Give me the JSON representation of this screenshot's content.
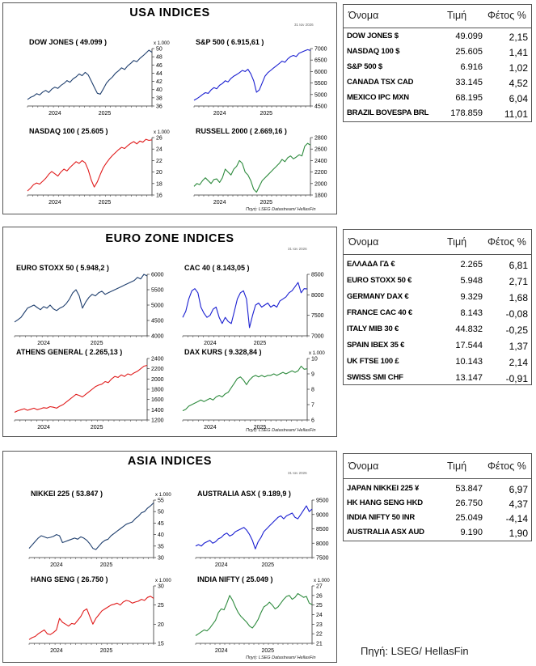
{
  "sections": [
    {
      "title": "USA INDICES",
      "date_stamp": "31 Ιαν 2026",
      "source": "Πηγή: LSEG Datastream/ HellasFin",
      "charts": [
        {
          "title": "DOW JONES ( 49.099 )",
          "unit": "x 1.000",
          "color": "#1f3f6e",
          "ylim": [
            36,
            50
          ],
          "yticks": [
            36,
            38,
            40,
            42,
            44,
            46,
            48,
            50
          ],
          "xlabels": [
            "2024",
            "2025"
          ],
          "values": [
            37.6,
            38.1,
            38.4,
            39.0,
            38.7,
            39.4,
            39.8,
            39.3,
            40.1,
            40.6,
            40.3,
            41.0,
            41.5,
            42.2,
            41.8,
            42.6,
            43.1,
            43.8,
            43.4,
            44.2,
            43.6,
            42.1,
            40.6,
            39.1,
            38.9,
            40.2,
            41.6,
            42.4,
            43.1,
            44.0,
            44.6,
            45.3,
            44.9,
            45.8,
            46.4,
            47.1,
            46.8,
            47.6,
            48.2,
            48.9,
            49.6,
            49.1
          ]
        },
        {
          "title": "S&P 500 ( 6.915,61 )",
          "unit": "",
          "color": "#1a1fd1",
          "ylim": [
            4500,
            7000
          ],
          "yticks": [
            4500,
            5000,
            5500,
            6000,
            6500,
            7000
          ],
          "xlabels": [
            "2024",
            "2025"
          ],
          "values": [
            4750,
            4820,
            4900,
            5000,
            5080,
            5050,
            5200,
            5300,
            5250,
            5400,
            5480,
            5600,
            5550,
            5700,
            5800,
            5870,
            5950,
            6050,
            6000,
            6100,
            5900,
            5600,
            5100,
            5200,
            5500,
            5800,
            5950,
            6050,
            6150,
            6250,
            6350,
            6450,
            6400,
            6550,
            6650,
            6700,
            6650,
            6800,
            6850,
            6900,
            6950,
            6915
          ]
        },
        {
          "title": "NASDAQ 100 ( 25.605 )",
          "unit": "x 1.000",
          "color": "#e01b1b",
          "ylim": [
            16,
            26
          ],
          "yticks": [
            16,
            18,
            20,
            22,
            24,
            26
          ],
          "xlabels": [
            "2024",
            "2025"
          ],
          "values": [
            16.7,
            17.2,
            17.8,
            18.1,
            17.9,
            18.4,
            18.9,
            19.6,
            20.1,
            19.7,
            19.3,
            20.0,
            20.5,
            20.2,
            20.8,
            21.3,
            21.8,
            21.5,
            22.0,
            21.6,
            20.4,
            18.6,
            17.4,
            18.3,
            19.6,
            20.8,
            21.6,
            22.3,
            22.9,
            23.4,
            23.9,
            24.3,
            24.1,
            24.6,
            25.0,
            25.3,
            24.9,
            25.4,
            25.2,
            25.7,
            25.5,
            25.6
          ]
        },
        {
          "title": "RUSSELL 2000 ( 2.669,16 )",
          "unit": "",
          "color": "#2e8b3e",
          "ylim": [
            1800,
            2800
          ],
          "yticks": [
            1800,
            2000,
            2200,
            2400,
            2600,
            2800
          ],
          "xlabels": [
            "2024",
            "2025"
          ],
          "values": [
            1950,
            2000,
            1980,
            2050,
            2100,
            2050,
            2000,
            2070,
            2080,
            2020,
            2100,
            2250,
            2200,
            2150,
            2250,
            2300,
            2400,
            2350,
            2200,
            2150,
            2050,
            1900,
            1850,
            1950,
            2050,
            2100,
            2150,
            2200,
            2250,
            2300,
            2350,
            2420,
            2380,
            2450,
            2480,
            2430,
            2460,
            2500,
            2480,
            2650,
            2700,
            2669
          ]
        }
      ],
      "table": {
        "headers": [
          "Όνομα",
          "Τιμή",
          "Φέτος %"
        ],
        "rows": [
          [
            "DOW JONES $",
            "49.099",
            "2,15"
          ],
          [
            "NASDAQ 100 $",
            "25.605",
            "1,41"
          ],
          [
            "S&P 500 $",
            "6.916",
            "1,02"
          ],
          [
            "CANADA TSX CAD",
            "33.145",
            "4,52"
          ],
          [
            "MEXICO IPC MXN",
            "68.195",
            "6,04"
          ],
          [
            "BRAZIL BOVESPA BRL",
            "178.859",
            "11,01"
          ]
        ]
      }
    },
    {
      "title": "EURO ZONE INDICES",
      "date_stamp": "31 Ιαν 2026",
      "source": "Πηγή: LSEG Datastream/ HellasFin",
      "charts": [
        {
          "title": "EURO STOXX 50 ( 5.948,2 )",
          "unit": "",
          "color": "#1f3f6e",
          "ylim": [
            4000,
            6000
          ],
          "yticks": [
            4000,
            4500,
            5000,
            5500,
            6000
          ],
          "xlabels": [
            "2024",
            "2025"
          ],
          "values": [
            4450,
            4520,
            4600,
            4750,
            4900,
            4950,
            5000,
            4920,
            4850,
            4950,
            4900,
            5000,
            4880,
            4820,
            4900,
            4950,
            5050,
            5200,
            5400,
            5500,
            5300,
            4900,
            5100,
            5250,
            5350,
            5300,
            5400,
            5450,
            5350,
            5400,
            5450,
            5500,
            5550,
            5600,
            5650,
            5700,
            5750,
            5800,
            5900,
            5850,
            6000,
            5948
          ]
        },
        {
          "title": "CAC 40 ( 8.143,05 )",
          "unit": "",
          "color": "#1a1fd1",
          "ylim": [
            7000,
            8500
          ],
          "yticks": [
            7000,
            7500,
            8000,
            8500
          ],
          "xlabels": [
            "2024",
            "2025"
          ],
          "values": [
            7450,
            7600,
            7900,
            8100,
            8150,
            8050,
            7700,
            7550,
            7450,
            7500,
            7650,
            7700,
            7450,
            7300,
            7450,
            7350,
            7300,
            7600,
            7900,
            8050,
            8100,
            7900,
            7200,
            7500,
            7750,
            7800,
            7700,
            7750,
            7800,
            7700,
            7750,
            7700,
            7850,
            7900,
            7950,
            8050,
            8100,
            8200,
            8300,
            8050,
            8150,
            8143
          ]
        },
        {
          "title": "ATHENS GENERAL ( 2.265,13 )",
          "unit": "",
          "color": "#e01b1b",
          "ylim": [
            1200,
            2400
          ],
          "yticks": [
            1200,
            1400,
            1600,
            1800,
            2000,
            2200,
            2400
          ],
          "xlabels": [
            "2024",
            "2025"
          ],
          "values": [
            1350,
            1380,
            1400,
            1420,
            1390,
            1410,
            1430,
            1400,
            1420,
            1440,
            1430,
            1460,
            1450,
            1430,
            1470,
            1500,
            1550,
            1600,
            1650,
            1700,
            1680,
            1650,
            1700,
            1750,
            1800,
            1850,
            1880,
            1900,
            1950,
            1930,
            2000,
            2050,
            2030,
            2080,
            2050,
            2100,
            2080,
            2120,
            2150,
            2200,
            2250,
            2265
          ]
        },
        {
          "title": "DAX KURS ( 9.328,84 )",
          "unit": "x 1.000",
          "color": "#2e8b3e",
          "ylim": [
            6,
            10
          ],
          "yticks": [
            6,
            7,
            8,
            9,
            10
          ],
          "xlabels": [
            "2024",
            "2025"
          ],
          "values": [
            6.6,
            6.7,
            6.9,
            7.0,
            7.1,
            7.2,
            7.3,
            7.2,
            7.3,
            7.4,
            7.3,
            7.5,
            7.6,
            7.5,
            7.7,
            7.8,
            8.1,
            8.4,
            8.7,
            8.8,
            8.6,
            8.3,
            8.6,
            8.8,
            8.9,
            8.8,
            8.9,
            8.8,
            8.9,
            8.9,
            9.0,
            8.9,
            9.0,
            9.1,
            9.0,
            9.1,
            9.2,
            9.1,
            9.2,
            9.5,
            9.3,
            9.33
          ]
        }
      ],
      "table": {
        "headers": [
          "Όνομα",
          "Τιμή",
          "Φέτος %"
        ],
        "rows": [
          [
            "ΕΛΛΑΔΑ ΓΔ €",
            "2.265",
            "6,81"
          ],
          [
            "EURO STOXX 50 €",
            "5.948",
            "2,71"
          ],
          [
            "GERMANY DAX €",
            "9.329",
            "1,68"
          ],
          [
            "FRANCE CAC 40 €",
            "8.143",
            "-0,08"
          ],
          [
            "ITALY MIB 30 €",
            "44.832",
            "-0,25"
          ],
          [
            "SPAIN IBEX 35 €",
            "17.544",
            "1,37"
          ],
          [
            "UK FTSE 100 £",
            "10.143",
            "2,14"
          ],
          [
            "SWISS SMI CHF",
            "13.147",
            "-0,91"
          ]
        ]
      }
    },
    {
      "title": "ASIA INDICES",
      "date_stamp": "31 Ιαν 2026",
      "source": "Πηγή: LSEG Datastream/ HellasFin",
      "charts": [
        {
          "title": "NIKKEI 225 ( 53.847 )",
          "unit": "x 1.000",
          "color": "#1f3f6e",
          "ylim": [
            30,
            55
          ],
          "yticks": [
            30,
            35,
            40,
            45,
            50,
            55
          ],
          "xlabels": [
            "2024",
            "2025"
          ],
          "values": [
            34.0,
            35.5,
            37.0,
            38.5,
            39.5,
            39.0,
            38.5,
            38.8,
            39.2,
            40.0,
            39.5,
            36.5,
            37.0,
            37.5,
            38.0,
            38.5,
            38.0,
            39.0,
            38.5,
            37.5,
            36.0,
            34.0,
            33.5,
            35.0,
            36.5,
            37.5,
            38.0,
            39.5,
            40.5,
            41.5,
            42.5,
            43.5,
            44.5,
            45.0,
            45.5,
            47.0,
            48.0,
            49.5,
            50.0,
            51.5,
            52.5,
            53.8
          ]
        },
        {
          "title": "AUSTRALIA ASX ( 9.189,9 )",
          "unit": "",
          "color": "#1a1fd1",
          "ylim": [
            7500,
            9500
          ],
          "yticks": [
            7500,
            8000,
            8500,
            9000,
            9500
          ],
          "xlabels": [
            "2024",
            "2025"
          ],
          "values": [
            7900,
            7950,
            7900,
            8000,
            8050,
            8100,
            8000,
            8050,
            8150,
            8200,
            8300,
            8350,
            8250,
            8300,
            8400,
            8450,
            8500,
            8550,
            8450,
            8300,
            8100,
            7800,
            8050,
            8200,
            8400,
            8500,
            8600,
            8700,
            8800,
            8900,
            8950,
            8850,
            8950,
            9000,
            9050,
            8900,
            8850,
            9000,
            9150,
            9300,
            9100,
            9190
          ]
        },
        {
          "title": "HANG SENG ( 26.750 )",
          "unit": "x 1.000",
          "color": "#e01b1b",
          "ylim": [
            15,
            30
          ],
          "yticks": [
            15,
            20,
            25,
            30
          ],
          "xlabels": [
            "2024",
            "2025"
          ],
          "values": [
            16.0,
            16.5,
            16.8,
            17.5,
            18.0,
            18.5,
            17.5,
            17.3,
            17.8,
            18.5,
            21.5,
            20.5,
            20.0,
            19.5,
            20.2,
            20.0,
            21.0,
            22.0,
            23.5,
            24.0,
            22.0,
            20.0,
            21.5,
            22.5,
            23.5,
            24.0,
            24.5,
            25.0,
            25.2,
            25.5,
            25.0,
            25.8,
            26.2,
            26.0,
            25.5,
            25.8,
            26.0,
            26.5,
            26.2,
            27.0,
            27.3,
            26.75
          ]
        },
        {
          "title": "INDIA NIFTY ( 25.049 )",
          "unit": "x 1.000",
          "color": "#2e8b3e",
          "ylim": [
            21,
            27
          ],
          "yticks": [
            21,
            22,
            23,
            24,
            25,
            26,
            27
          ],
          "xlabels": [
            "2024",
            "2025"
          ],
          "values": [
            21.8,
            22.0,
            22.2,
            22.4,
            22.3,
            22.6,
            23.0,
            23.4,
            24.2,
            24.6,
            24.5,
            25.2,
            26.0,
            25.5,
            24.8,
            24.2,
            23.8,
            23.5,
            23.2,
            22.8,
            22.6,
            23.0,
            23.5,
            24.2,
            24.8,
            25.0,
            25.3,
            25.0,
            24.6,
            24.8,
            25.2,
            25.6,
            25.9,
            26.0,
            25.6,
            25.8,
            26.2,
            26.0,
            25.8,
            25.9,
            25.2,
            25.05
          ]
        }
      ],
      "table": {
        "headers": [
          "Όνομα",
          "Τιμή",
          "Φέτος %"
        ],
        "rows": [
          [
            "JAPAN NIKKEI 225 ¥",
            "53.847",
            "6,97"
          ],
          [
            "HK HANG SENG HKD",
            "26.750",
            "4,37"
          ],
          [
            "INDIA NIFTY 50 INR",
            "25.049",
            "-4,14"
          ],
          [
            "AUSTRALIA ASX AUD",
            "9.190",
            "1,90"
          ]
        ]
      }
    }
  ],
  "footer_source": "Πηγή: LSEG/ HellasFin"
}
